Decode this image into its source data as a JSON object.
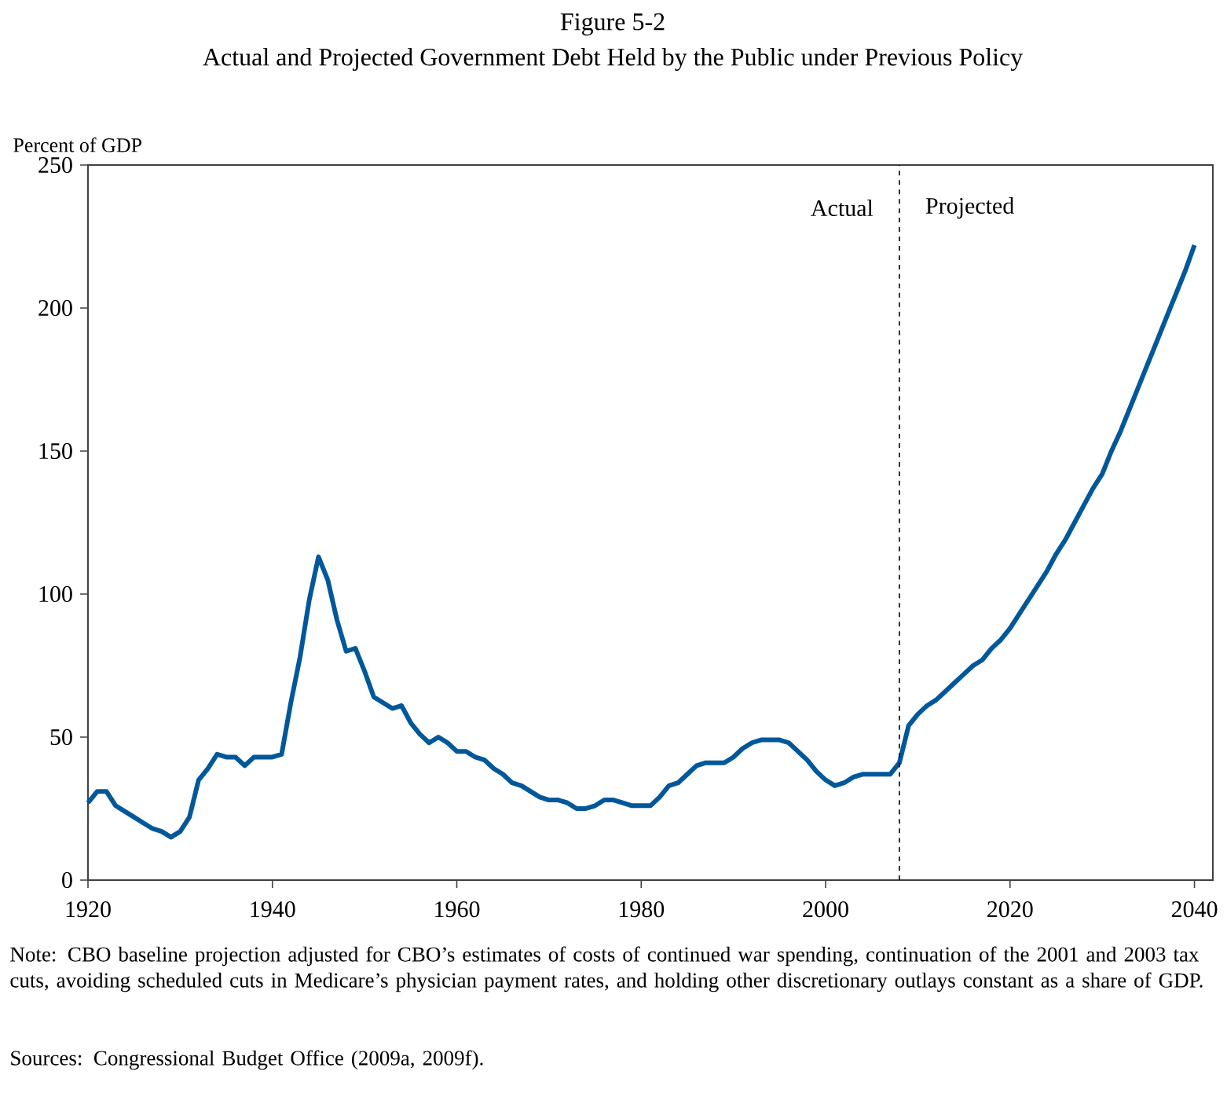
{
  "chart_data": {
    "type": "line",
    "title": "Figure 5-2",
    "subtitle": "Actual and Projected Government Debt Held by the Public under Previous Policy",
    "ylabel": "Percent of GDP",
    "x": [
      1920,
      1921,
      1922,
      1923,
      1924,
      1925,
      1926,
      1927,
      1928,
      1929,
      1930,
      1931,
      1932,
      1933,
      1934,
      1935,
      1936,
      1937,
      1938,
      1939,
      1940,
      1941,
      1942,
      1943,
      1944,
      1945,
      1946,
      1947,
      1948,
      1949,
      1950,
      1951,
      1952,
      1953,
      1954,
      1955,
      1956,
      1957,
      1958,
      1959,
      1960,
      1961,
      1962,
      1963,
      1964,
      1965,
      1966,
      1967,
      1968,
      1969,
      1970,
      1971,
      1972,
      1973,
      1974,
      1975,
      1976,
      1977,
      1978,
      1979,
      1980,
      1981,
      1982,
      1983,
      1984,
      1985,
      1986,
      1987,
      1988,
      1989,
      1990,
      1991,
      1992,
      1993,
      1994,
      1995,
      1996,
      1997,
      1998,
      1999,
      2000,
      2001,
      2002,
      2003,
      2004,
      2005,
      2006,
      2007,
      2008,
      2009,
      2010,
      2011,
      2012,
      2013,
      2014,
      2015,
      2016,
      2017,
      2018,
      2019,
      2020,
      2021,
      2022,
      2023,
      2024,
      2025,
      2026,
      2027,
      2028,
      2029,
      2030,
      2031,
      2032,
      2033,
      2034,
      2035,
      2036,
      2037,
      2038,
      2039,
      2040
    ],
    "series": [
      {
        "color": "#00589a",
        "values": [
          27,
          31,
          31,
          26,
          24,
          22,
          20,
          18,
          17,
          15,
          17,
          22,
          35,
          39,
          44,
          43,
          43,
          40,
          43,
          43,
          43,
          44,
          62,
          78,
          98,
          113,
          105,
          91,
          80,
          81,
          73,
          64,
          62,
          60,
          61,
          55,
          51,
          48,
          50,
          48,
          45,
          45,
          43,
          42,
          39,
          37,
          34,
          33,
          31,
          29,
          28,
          28,
          27,
          25,
          25,
          26,
          28,
          28,
          27,
          26,
          26,
          26,
          29,
          33,
          34,
          37,
          40,
          41,
          41,
          41,
          43,
          46,
          48,
          49,
          49,
          49,
          48,
          45,
          42,
          38,
          35,
          33,
          34,
          36,
          37,
          37,
          37,
          37,
          41,
          54,
          58,
          61,
          63,
          66,
          69,
          72,
          75,
          77,
          81,
          84,
          88,
          93,
          98,
          103,
          108,
          114,
          119,
          125,
          131,
          137,
          142,
          150,
          157,
          165,
          173,
          181,
          189,
          197,
          205,
          213,
          222
        ]
      }
    ],
    "xlim": [
      1920,
      2042
    ],
    "xticks": [
      1920,
      1940,
      1960,
      1980,
      2000,
      2020,
      2040
    ],
    "ylim": [
      0,
      250
    ],
    "yticks": [
      0,
      50,
      100,
      150,
      200,
      250
    ],
    "grid": false,
    "ref_lines": [
      {
        "axis": "x",
        "value": 2008,
        "line_style": "dashed",
        "color": "#000000"
      }
    ],
    "annotations": [
      {
        "text": "Actual",
        "x": 2008,
        "y": 235
      },
      {
        "text": "Projected",
        "x": 2008,
        "y": 235
      },
      "Note:  CBO baseline projection adjusted for CBO’s estimates of costs of continued war spending, continuation of the 2001 and 2003 tax cuts, avoiding scheduled cuts in Medicare’s physician payment rates, and holding other discretionary outlays constant as a share of GDP.",
      "Sources:  Congressional Budget Office (2009a, 2009f)."
    ]
  }
}
